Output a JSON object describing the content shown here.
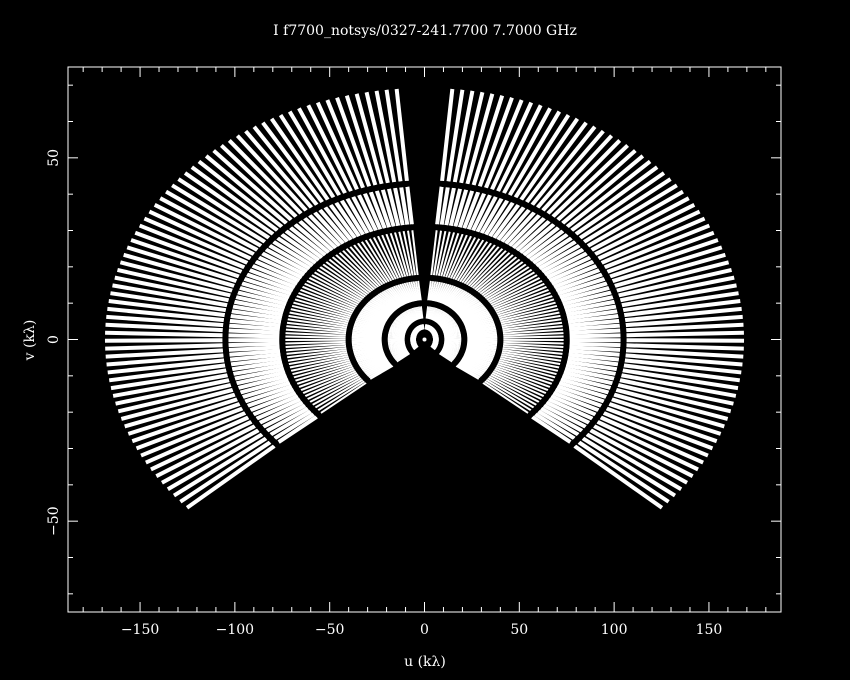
{
  "title": "I f7700_notsys/0327-241.7700  7.7000 GHz",
  "colors": {
    "background": "#000000",
    "foreground": "#ffffff"
  },
  "chart_data": {
    "type": "scatter",
    "title": "I f7700_notsys/0327-241.7700  7.7000 GHz",
    "xlabel": "u (kλ)",
    "ylabel": "v (kλ)",
    "xlim": [
      -188,
      188
    ],
    "ylim": [
      -75,
      75
    ],
    "xticks": [
      -150,
      -100,
      -50,
      0,
      50,
      100,
      150
    ],
    "yticks": [
      -50,
      0,
      50
    ],
    "grid": false,
    "legend": "none",
    "series": [
      {
        "description_of_coverage": "uv-track arcs (elliptical), left lobe",
        "arcs_kλ": [
          {
            "u_radius": 3,
            "v_radius": 2,
            "theta_deg": [
              95,
              265
            ]
          },
          {
            "u_radius": 9,
            "v_radius": 5,
            "theta_deg": [
              95,
              265
            ]
          },
          {
            "u_radius": 21,
            "v_radius": 10,
            "theta_deg": [
              95,
              240
            ]
          },
          {
            "u_radius": 40,
            "v_radius": 17,
            "theta_deg": [
              95,
              235
            ]
          },
          {
            "u_radius": 75,
            "v_radius": 31,
            "theta_deg": [
              95,
              230
            ]
          },
          {
            "u_radius": 105,
            "v_radius": 43,
            "theta_deg": [
              95,
              225
            ]
          },
          {
            "u_radius": 170,
            "v_radius": 70,
            "theta_deg": [
              95,
              222
            ]
          }
        ]
      },
      {
        "description_of_coverage": "uv-track arcs (elliptical), right lobe (conjugate)",
        "arcs_kλ": [
          {
            "u_radius": 3,
            "v_radius": 2,
            "theta_deg": [
              -85,
              85
            ]
          },
          {
            "u_radius": 9,
            "v_radius": 5,
            "theta_deg": [
              -85,
              85
            ]
          },
          {
            "u_radius": 21,
            "v_radius": 10,
            "theta_deg": [
              -60,
              85
            ]
          },
          {
            "u_radius": 40,
            "v_radius": 17,
            "theta_deg": [
              -55,
              85
            ]
          },
          {
            "u_radius": 75,
            "v_radius": 31,
            "theta_deg": [
              -50,
              85
            ]
          },
          {
            "u_radius": 105,
            "v_radius": 43,
            "theta_deg": [
              -45,
              85
            ]
          },
          {
            "u_radius": 170,
            "v_radius": 70,
            "theta_deg": [
              -42,
              85
            ]
          }
        ]
      }
    ]
  }
}
